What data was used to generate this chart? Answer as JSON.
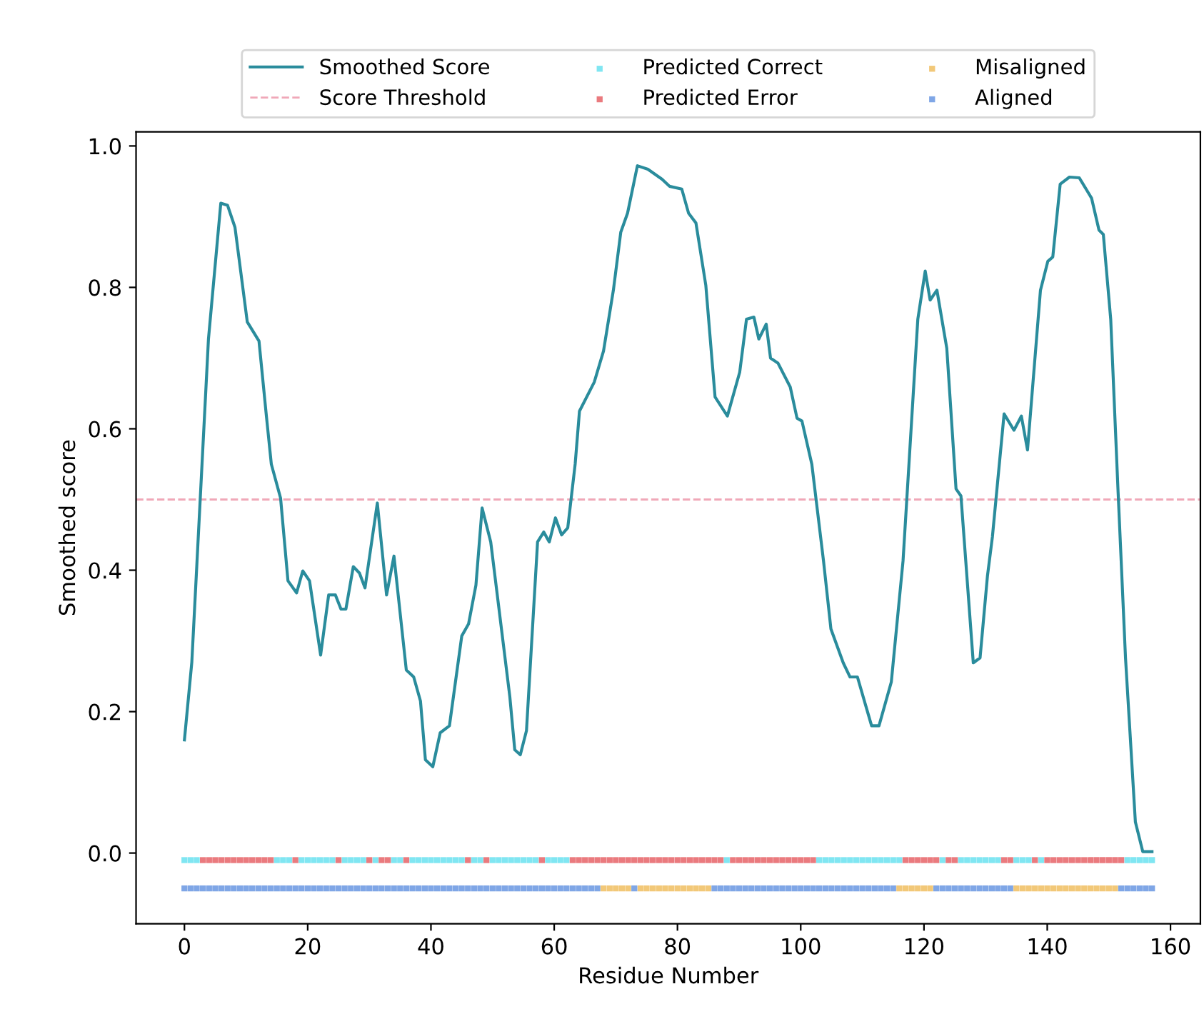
{
  "chart_data": {
    "type": "line",
    "xlabel": "Residue Number",
    "ylabel": "Smoothed score",
    "xlim": [
      -7.85,
      164.85
    ],
    "xticks": [
      0,
      20,
      40,
      60,
      80,
      100,
      120,
      140,
      160
    ],
    "ylim": [
      -0.1,
      1.02
    ],
    "yticks": [
      {
        "value": 0,
        "label": "0.0"
      },
      {
        "value": 0.2,
        "label": "0.2"
      },
      {
        "value": 0.4,
        "label": "0.4"
      },
      {
        "value": 0.6,
        "label": "0.6"
      },
      {
        "value": 0.8,
        "label": "0.8"
      },
      {
        "value": 1.0,
        "label": "1.0"
      }
    ],
    "grid": false,
    "legend": "top",
    "ref_lines": [
      {
        "axis": "y",
        "value": 0.5,
        "label": "Score Threshold",
        "color": "#f0a8b8",
        "line_style": "dashed"
      }
    ],
    "series": [
      {
        "name": "Smoothed Score",
        "color": "#2a8c9c",
        "marker": "none",
        "line_style": "solid",
        "x": [
          0,
          1.2,
          3.9,
          5.9,
          7.0,
          8.2,
          10.2,
          12.1,
          13.3,
          14.1,
          15.6,
          16.8,
          18.2,
          19.2,
          20.3,
          22.1,
          23.4,
          24.5,
          25.4,
          26.2,
          27.4,
          28.4,
          29.3,
          31.3,
          32.8,
          34.0,
          36.0,
          37.2,
          38.3,
          39.1,
          40.3,
          41.5,
          43.0,
          45.0,
          46.1,
          47.3,
          48.3,
          49.7,
          52.8,
          53.6,
          54.5,
          55.5,
          57.3,
          58.3,
          59.2,
          60.2,
          61.2,
          62.2,
          63.4,
          64.1,
          66.5,
          68.0,
          69.6,
          70.8,
          71.9,
          73.5,
          75.2,
          77.5,
          78.7,
          80.7,
          81.8,
          83.0,
          84.6,
          86.1,
          88.1,
          90.1,
          91.2,
          92.4,
          93.2,
          94.4,
          95.1,
          96.3,
          98.3,
          99.4,
          100.2,
          101.8,
          103.7,
          104.9,
          106.9,
          108.0,
          109.2,
          110.8,
          111.5,
          112.7,
          114.7,
          116.6,
          119.0,
          120.2,
          121.0,
          122.1,
          123.7,
          125.2,
          126.0,
          128.0,
          129.1,
          130.3,
          131.1,
          133.0,
          134.6,
          135.8,
          136.8,
          138.9,
          140.1,
          140.9,
          142.1,
          143.6,
          145.2,
          147.2,
          148.4,
          149.1,
          150.3,
          151.5,
          152.7,
          154.3,
          155.5,
          157
        ],
        "values": [
          0.16,
          0.27,
          0.727,
          0.919,
          0.916,
          0.885,
          0.751,
          0.724,
          0.618,
          0.55,
          0.502,
          0.385,
          0.368,
          0.399,
          0.385,
          0.28,
          0.365,
          0.365,
          0.345,
          0.345,
          0.405,
          0.396,
          0.375,
          0.495,
          0.365,
          0.42,
          0.259,
          0.249,
          0.215,
          0.132,
          0.122,
          0.17,
          0.18,
          0.307,
          0.324,
          0.379,
          0.488,
          0.44,
          0.221,
          0.146,
          0.139,
          0.173,
          0.44,
          0.454,
          0.44,
          0.474,
          0.45,
          0.46,
          0.55,
          0.625,
          0.666,
          0.71,
          0.796,
          0.878,
          0.905,
          0.972,
          0.967,
          0.953,
          0.943,
          0.939,
          0.905,
          0.891,
          0.803,
          0.645,
          0.618,
          0.68,
          0.755,
          0.758,
          0.727,
          0.748,
          0.7,
          0.693,
          0.659,
          0.615,
          0.611,
          0.55,
          0.413,
          0.317,
          0.269,
          0.249,
          0.249,
          0.201,
          0.18,
          0.18,
          0.242,
          0.413,
          0.755,
          0.823,
          0.782,
          0.796,
          0.714,
          0.515,
          0.505,
          0.269,
          0.276,
          0.392,
          0.447,
          0.621,
          0.598,
          0.618,
          0.57,
          0.796,
          0.837,
          0.843,
          0.946,
          0.956,
          0.955,
          0.926,
          0.881,
          0.875,
          0.755,
          0.51,
          0.276,
          0.044,
          0.002,
          0.002
        ]
      },
      {
        "name": "Predicted Correct",
        "type": "scatter",
        "color": "#80e6f2",
        "marker": "square",
        "x": [
          0,
          1,
          2,
          15,
          16,
          17,
          19,
          20,
          21,
          22,
          23,
          24,
          26,
          27,
          28,
          29,
          31,
          34,
          35,
          37,
          38,
          39,
          40,
          41,
          42,
          43,
          44,
          45,
          47,
          48,
          50,
          51,
          52,
          53,
          54,
          55,
          56,
          57,
          59,
          60,
          61,
          62,
          88,
          103,
          104,
          105,
          106,
          107,
          108,
          109,
          110,
          111,
          112,
          113,
          114,
          115,
          116,
          123,
          126,
          127,
          128,
          129,
          130,
          131,
          132,
          135,
          136,
          137,
          139,
          153,
          154,
          155,
          156,
          157
        ],
        "values": [
          -0.01,
          -0.01,
          -0.01,
          -0.01,
          -0.01,
          -0.01,
          -0.01,
          -0.01,
          -0.01,
          -0.01,
          -0.01,
          -0.01,
          -0.01,
          -0.01,
          -0.01,
          -0.01,
          -0.01,
          -0.01,
          -0.01,
          -0.01,
          -0.01,
          -0.01,
          -0.01,
          -0.01,
          -0.01,
          -0.01,
          -0.01,
          -0.01,
          -0.01,
          -0.01,
          -0.01,
          -0.01,
          -0.01,
          -0.01,
          -0.01,
          -0.01,
          -0.01,
          -0.01,
          -0.01,
          -0.01,
          -0.01,
          -0.01,
          -0.01,
          -0.01,
          -0.01,
          -0.01,
          -0.01,
          -0.01,
          -0.01,
          -0.01,
          -0.01,
          -0.01,
          -0.01,
          -0.01,
          -0.01,
          -0.01,
          -0.01,
          -0.01,
          -0.01,
          -0.01,
          -0.01,
          -0.01,
          -0.01,
          -0.01,
          -0.01,
          -0.01,
          -0.01,
          -0.01,
          -0.01,
          -0.01,
          -0.01,
          -0.01,
          -0.01,
          -0.01
        ]
      },
      {
        "name": "Predicted Error",
        "type": "scatter",
        "color": "#ea7a7e",
        "marker": "square",
        "x": [
          3,
          4,
          5,
          6,
          7,
          8,
          9,
          10,
          11,
          12,
          13,
          14,
          18,
          25,
          30,
          32,
          33,
          36,
          46,
          49,
          58,
          63,
          64,
          65,
          66,
          67,
          68,
          69,
          70,
          71,
          72,
          73,
          74,
          75,
          76,
          77,
          78,
          79,
          80,
          81,
          82,
          83,
          84,
          85,
          86,
          87,
          89,
          90,
          91,
          92,
          93,
          94,
          95,
          96,
          97,
          98,
          99,
          100,
          101,
          102,
          117,
          118,
          119,
          120,
          121,
          122,
          124,
          125,
          133,
          134,
          138,
          140,
          141,
          142,
          143,
          144,
          145,
          146,
          147,
          148,
          149,
          150,
          151,
          152
        ],
        "values": [
          -0.01,
          -0.01,
          -0.01,
          -0.01,
          -0.01,
          -0.01,
          -0.01,
          -0.01,
          -0.01,
          -0.01,
          -0.01,
          -0.01,
          -0.01,
          -0.01,
          -0.01,
          -0.01,
          -0.01,
          -0.01,
          -0.01,
          -0.01,
          -0.01,
          -0.01,
          -0.01,
          -0.01,
          -0.01,
          -0.01,
          -0.01,
          -0.01,
          -0.01,
          -0.01,
          -0.01,
          -0.01,
          -0.01,
          -0.01,
          -0.01,
          -0.01,
          -0.01,
          -0.01,
          -0.01,
          -0.01,
          -0.01,
          -0.01,
          -0.01,
          -0.01,
          -0.01,
          -0.01,
          -0.01,
          -0.01,
          -0.01,
          -0.01,
          -0.01,
          -0.01,
          -0.01,
          -0.01,
          -0.01,
          -0.01,
          -0.01,
          -0.01,
          -0.01,
          -0.01,
          -0.01,
          -0.01,
          -0.01,
          -0.01,
          -0.01,
          -0.01,
          -0.01,
          -0.01,
          -0.01,
          -0.01,
          -0.01,
          -0.01,
          -0.01,
          -0.01,
          -0.01,
          -0.01,
          -0.01,
          -0.01,
          -0.01,
          -0.01,
          -0.01,
          -0.01,
          -0.01,
          -0.01
        ]
      },
      {
        "name": "Misaligned",
        "type": "scatter",
        "color": "#f2c878",
        "marker": "square",
        "x": [
          68,
          69,
          70,
          71,
          72,
          74,
          75,
          76,
          77,
          78,
          79,
          80,
          81,
          82,
          83,
          84,
          85,
          116,
          117,
          118,
          119,
          120,
          121,
          135,
          136,
          137,
          138,
          139,
          140,
          141,
          142,
          143,
          144,
          145,
          146,
          147,
          148,
          149,
          150,
          151
        ],
        "values": [
          -0.05,
          -0.05,
          -0.05,
          -0.05,
          -0.05,
          -0.05,
          -0.05,
          -0.05,
          -0.05,
          -0.05,
          -0.05,
          -0.05,
          -0.05,
          -0.05,
          -0.05,
          -0.05,
          -0.05,
          -0.05,
          -0.05,
          -0.05,
          -0.05,
          -0.05,
          -0.05,
          -0.05,
          -0.05,
          -0.05,
          -0.05,
          -0.05,
          -0.05,
          -0.05,
          -0.05,
          -0.05,
          -0.05,
          -0.05,
          -0.05,
          -0.05,
          -0.05,
          -0.05,
          -0.05,
          -0.05
        ]
      },
      {
        "name": "Aligned",
        "type": "scatter",
        "color": "#7fa6e6",
        "marker": "square",
        "x": [
          0,
          1,
          2,
          3,
          4,
          5,
          6,
          7,
          8,
          9,
          10,
          11,
          12,
          13,
          14,
          15,
          16,
          17,
          18,
          19,
          20,
          21,
          22,
          23,
          24,
          25,
          26,
          27,
          28,
          29,
          30,
          31,
          32,
          33,
          34,
          35,
          36,
          37,
          38,
          39,
          40,
          41,
          42,
          43,
          44,
          45,
          46,
          47,
          48,
          49,
          50,
          51,
          52,
          53,
          54,
          55,
          56,
          57,
          58,
          59,
          60,
          61,
          62,
          63,
          64,
          65,
          66,
          67,
          73,
          86,
          87,
          88,
          89,
          90,
          91,
          92,
          93,
          94,
          95,
          96,
          97,
          98,
          99,
          100,
          101,
          102,
          103,
          104,
          105,
          106,
          107,
          108,
          109,
          110,
          111,
          112,
          113,
          114,
          115,
          122,
          123,
          124,
          125,
          126,
          127,
          128,
          129,
          130,
          131,
          132,
          133,
          134,
          152,
          153,
          154,
          155,
          156,
          157
        ],
        "values": [
          -0.05,
          -0.05,
          -0.05,
          -0.05,
          -0.05,
          -0.05,
          -0.05,
          -0.05,
          -0.05,
          -0.05,
          -0.05,
          -0.05,
          -0.05,
          -0.05,
          -0.05,
          -0.05,
          -0.05,
          -0.05,
          -0.05,
          -0.05,
          -0.05,
          -0.05,
          -0.05,
          -0.05,
          -0.05,
          -0.05,
          -0.05,
          -0.05,
          -0.05,
          -0.05,
          -0.05,
          -0.05,
          -0.05,
          -0.05,
          -0.05,
          -0.05,
          -0.05,
          -0.05,
          -0.05,
          -0.05,
          -0.05,
          -0.05,
          -0.05,
          -0.05,
          -0.05,
          -0.05,
          -0.05,
          -0.05,
          -0.05,
          -0.05,
          -0.05,
          -0.05,
          -0.05,
          -0.05,
          -0.05,
          -0.05,
          -0.05,
          -0.05,
          -0.05,
          -0.05,
          -0.05,
          -0.05,
          -0.05,
          -0.05,
          -0.05,
          -0.05,
          -0.05,
          -0.05,
          -0.05,
          -0.05,
          -0.05,
          -0.05,
          -0.05,
          -0.05,
          -0.05,
          -0.05,
          -0.05,
          -0.05,
          -0.05,
          -0.05,
          -0.05,
          -0.05,
          -0.05,
          -0.05,
          -0.05,
          -0.05,
          -0.05,
          -0.05,
          -0.05,
          -0.05,
          -0.05,
          -0.05,
          -0.05,
          -0.05,
          -0.05,
          -0.05,
          -0.05,
          -0.05,
          -0.05,
          -0.05,
          -0.05,
          -0.05,
          -0.05,
          -0.05,
          -0.05,
          -0.05,
          -0.05,
          -0.05,
          -0.05,
          -0.05,
          -0.05,
          -0.05,
          -0.05,
          -0.05,
          -0.05,
          -0.05,
          -0.05,
          -0.05
        ]
      }
    ]
  }
}
